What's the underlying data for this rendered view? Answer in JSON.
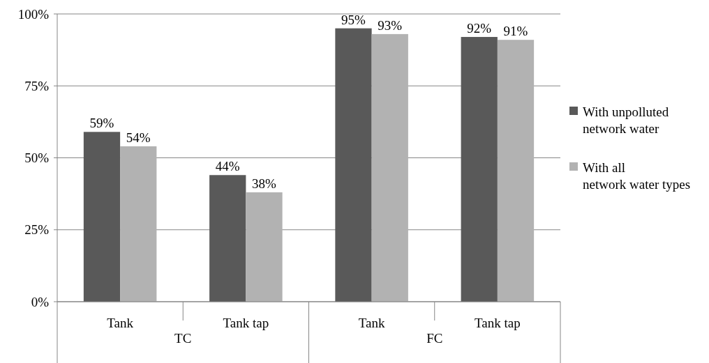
{
  "chart_data": {
    "type": "bar",
    "categories": [
      "Tank",
      "Tank tap",
      "Tank",
      "Tank tap"
    ],
    "series": [
      {
        "name": "With unpolluted network water",
        "color": "#595959",
        "values": [
          59,
          44,
          95,
          92
        ],
        "value_labels": [
          "59%",
          "44%",
          "95%",
          "92%"
        ]
      },
      {
        "name": "With all network water types",
        "color": "#b2b2b2",
        "values": [
          54,
          38,
          93,
          91
        ],
        "value_labels": [
          "54%",
          "38%",
          "93%",
          "91%"
        ]
      }
    ],
    "annotations": [
      "TC",
      "FC"
    ],
    "ylim": [
      0,
      100
    ],
    "yticks": [
      {
        "value": 0,
        "label": "0%"
      },
      {
        "value": 25,
        "label": "25%"
      },
      {
        "value": 50,
        "label": "50%"
      },
      {
        "value": 75,
        "label": "75%"
      },
      {
        "value": 100,
        "label": "100%"
      }
    ],
    "grid": "y",
    "legend": "right"
  }
}
